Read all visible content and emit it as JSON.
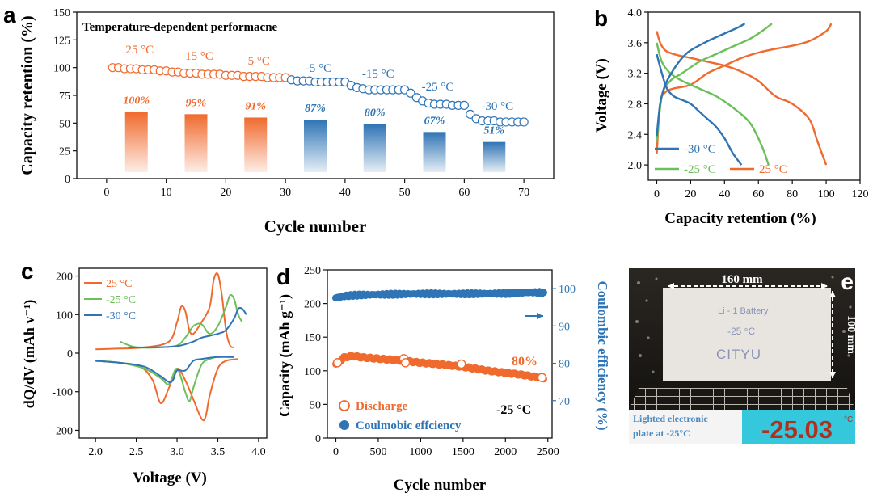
{
  "panels": {
    "a": {
      "letter": "a"
    },
    "b": {
      "letter": "b"
    },
    "c": {
      "letter": "c"
    },
    "d": {
      "letter": "d"
    },
    "e": {
      "letter": "e"
    }
  },
  "chart_data": [
    {
      "id": "a",
      "type": "scatter+bar",
      "title": "Temperature-dependent performacne",
      "xlabel": "Cycle number",
      "ylabel": "Capacity retention (%)",
      "xlim": [
        -5,
        75
      ],
      "ylim": [
        0,
        150
      ],
      "xticks": [
        0,
        10,
        20,
        30,
        40,
        50,
        60,
        70
      ],
      "yticks": [
        0,
        25,
        50,
        75,
        100,
        125,
        150
      ],
      "grid": false,
      "bars": [
        {
          "x": 5,
          "value": 60,
          "label": "100%",
          "temp": "25 °C",
          "color": "#f06a2e"
        },
        {
          "x": 15,
          "value": 58,
          "label": "95%",
          "temp": "15 °C",
          "color": "#f06a2e"
        },
        {
          "x": 25,
          "value": 55,
          "label": "91%",
          "temp": "5 °C",
          "color": "#f06a2e"
        },
        {
          "x": 35,
          "value": 53,
          "label": "87%",
          "temp": "-5 °C",
          "color": "#2f74b5"
        },
        {
          "x": 45,
          "value": 49,
          "label": "80%",
          "temp": "-15 °C",
          "color": "#2f74b5"
        },
        {
          "x": 55,
          "value": 42,
          "label": "67%",
          "temp": "-25 °C",
          "color": "#2f74b5"
        },
        {
          "x": 65,
          "value": 33,
          "label": "51%",
          "temp": "-30 °C",
          "color": "#2f74b5"
        }
      ],
      "series": [
        {
          "x_start": 1,
          "values": [
            100,
            100,
            99,
            99,
            99,
            98,
            98,
            98,
            97,
            97,
            96,
            96,
            95,
            95,
            95,
            94,
            94,
            94,
            94,
            93,
            93,
            93,
            92,
            92,
            92,
            92,
            91,
            91,
            91,
            91,
            89,
            88,
            88,
            88,
            87,
            87,
            87,
            87,
            87,
            87,
            84,
            82,
            81,
            80,
            80,
            80,
            80,
            80,
            80,
            80,
            77,
            73,
            70,
            68,
            67,
            67,
            67,
            66,
            66,
            66,
            58,
            54,
            52,
            52,
            52,
            51,
            51,
            51,
            51,
            51
          ]
        }
      ]
    },
    {
      "id": "b",
      "type": "line",
      "xlabel": "Capacity retention (%)",
      "ylabel": "Voltage (V)",
      "xlim": [
        -5,
        120
      ],
      "ylim": [
        1.8,
        4.0
      ],
      "xticks": [
        0,
        20,
        40,
        60,
        80,
        100,
        120
      ],
      "yticks": [
        "2.0",
        "2.4",
        "2.8",
        "3.2",
        "3.6",
        "4.0"
      ],
      "legend": [
        {
          "name": "-30 °C",
          "color": "#2f74b5"
        },
        {
          "name": "-25 °C",
          "color": "#6cbf5a"
        },
        {
          "name": "25 °C",
          "color": "#f06a2e"
        }
      ],
      "series": [
        {
          "name": "25 °C",
          "color": "#f06a2e",
          "branch": "charge",
          "x": [
            0,
            2,
            5,
            10,
            20,
            30,
            40,
            50,
            60,
            70,
            80,
            90,
            100,
            103
          ],
          "y": [
            2.15,
            2.8,
            2.95,
            3.0,
            3.05,
            3.2,
            3.3,
            3.4,
            3.47,
            3.52,
            3.56,
            3.62,
            3.75,
            3.85
          ]
        },
        {
          "name": "25 °C",
          "color": "#f06a2e",
          "branch": "discharge",
          "x": [
            0,
            2,
            5,
            10,
            20,
            30,
            40,
            50,
            60,
            70,
            80,
            90,
            95,
            100
          ],
          "y": [
            3.75,
            3.6,
            3.5,
            3.45,
            3.4,
            3.35,
            3.3,
            3.22,
            3.1,
            2.9,
            2.8,
            2.6,
            2.3,
            2.0
          ]
        },
        {
          "name": "-25 °C",
          "color": "#6cbf5a",
          "branch": "charge",
          "x": [
            0,
            3,
            8,
            15,
            25,
            35,
            45,
            55,
            62,
            68
          ],
          "y": [
            2.3,
            2.9,
            3.1,
            3.2,
            3.35,
            3.45,
            3.55,
            3.65,
            3.75,
            3.85
          ]
        },
        {
          "name": "-25 °C",
          "color": "#6cbf5a",
          "branch": "discharge",
          "x": [
            0,
            3,
            8,
            15,
            25,
            35,
            45,
            55,
            62,
            66
          ],
          "y": [
            3.6,
            3.35,
            3.2,
            3.1,
            3.0,
            2.9,
            2.75,
            2.55,
            2.25,
            2.0
          ]
        },
        {
          "name": "-30 °C",
          "color": "#2f74b5",
          "branch": "charge",
          "x": [
            0,
            2,
            5,
            10,
            15,
            20,
            30,
            40,
            48,
            52
          ],
          "y": [
            2.38,
            2.8,
            3.05,
            3.25,
            3.4,
            3.5,
            3.62,
            3.72,
            3.8,
            3.85
          ]
        },
        {
          "name": "-30 °C",
          "color": "#2f74b5",
          "branch": "discharge",
          "x": [
            0,
            3,
            6,
            10,
            15,
            20,
            25,
            30,
            35,
            40,
            45,
            50
          ],
          "y": [
            3.45,
            3.2,
            3.0,
            2.9,
            2.85,
            2.8,
            2.7,
            2.6,
            2.5,
            2.35,
            2.15,
            2.0
          ]
        }
      ]
    },
    {
      "id": "c",
      "type": "line",
      "xlabel": "Voltage (V)",
      "ylabel": "dQ/dV (mAh v⁻¹)",
      "xlim": [
        1.8,
        4.1
      ],
      "ylim": [
        -220,
        220
      ],
      "xticks": [
        "2.0",
        "2.5",
        "3.0",
        "3.5",
        "4.0"
      ],
      "yticks": [
        -200,
        -100,
        0,
        100,
        200
      ],
      "legend": [
        {
          "name": "25 °C",
          "color": "#f06a2e"
        },
        {
          "name": "-25 °C",
          "color": "#6cbf5a"
        },
        {
          "name": "-30 °C",
          "color": "#2f74b5"
        }
      ],
      "series": [
        {
          "name": "25 °C",
          "color": "#f06a2e",
          "x": [
            2.0,
            2.3,
            2.6,
            2.9,
            3.0,
            3.05,
            3.1,
            3.15,
            3.2,
            3.3,
            3.4,
            3.45,
            3.5,
            3.55,
            3.6,
            3.65,
            3.7
          ],
          "y": [
            10,
            12,
            15,
            30,
            80,
            120,
            110,
            60,
            50,
            80,
            120,
            190,
            205,
            150,
            60,
            20,
            15
          ]
        },
        {
          "name": "25 °C",
          "color": "#f06a2e",
          "x": [
            2.0,
            2.3,
            2.55,
            2.7,
            2.8,
            2.9,
            3.0,
            3.1,
            3.2,
            3.3,
            3.35,
            3.4,
            3.5,
            3.6,
            3.75
          ],
          "y": [
            -20,
            -25,
            -35,
            -70,
            -130,
            -90,
            -40,
            -70,
            -120,
            -170,
            -165,
            -110,
            -40,
            -20,
            -15
          ]
        },
        {
          "name": "-25 °C",
          "color": "#6cbf5a",
          "x": [
            2.3,
            2.5,
            2.8,
            3.0,
            3.1,
            3.2,
            3.3,
            3.4,
            3.5,
            3.6,
            3.65,
            3.7,
            3.75,
            3.8
          ],
          "y": [
            30,
            15,
            15,
            20,
            40,
            70,
            75,
            50,
            70,
            120,
            150,
            140,
            100,
            80
          ]
        },
        {
          "name": "-25 °C",
          "color": "#6cbf5a",
          "x": [
            2.0,
            2.3,
            2.6,
            2.8,
            2.9,
            3.0,
            3.1,
            3.15,
            3.2,
            3.3,
            3.4,
            3.5,
            3.7
          ],
          "y": [
            -20,
            -25,
            -40,
            -65,
            -80,
            -40,
            -100,
            -125,
            -90,
            -30,
            -15,
            -10,
            -10
          ]
        },
        {
          "name": "-30 °C",
          "color": "#2f74b5",
          "x": [
            2.4,
            2.7,
            3.0,
            3.2,
            3.3,
            3.5,
            3.6,
            3.7,
            3.75,
            3.8,
            3.85
          ],
          "y": [
            15,
            15,
            18,
            30,
            40,
            50,
            60,
            90,
            115,
            115,
            100
          ]
        },
        {
          "name": "-30 °C",
          "color": "#2f74b5",
          "x": [
            2.0,
            2.3,
            2.6,
            2.8,
            2.9,
            2.95,
            3.0,
            3.1,
            3.2,
            3.3,
            3.5,
            3.7
          ],
          "y": [
            -20,
            -25,
            -35,
            -60,
            -75,
            -70,
            -45,
            -45,
            -20,
            -15,
            -10,
            -10
          ]
        }
      ]
    },
    {
      "id": "d",
      "type": "scatter",
      "xlabel": "Cycle number",
      "ylabel": "Capacity (mAh g⁻¹)",
      "ylabel_right": "Coulombic efficiency (%)",
      "xlim": [
        -100,
        2550
      ],
      "ylim": [
        0,
        250
      ],
      "ylim_right": [
        60,
        105
      ],
      "xticks": [
        0,
        500,
        1000,
        1500,
        2000,
        2500
      ],
      "yticks": [
        0,
        50,
        100,
        150,
        200,
        250
      ],
      "yticks_right": [
        70,
        80,
        90,
        100
      ],
      "annotation": "80%",
      "condition": "-25 °C",
      "legend": [
        {
          "name": "Discharge",
          "color": "#f06a2e",
          "marker": "open-circle"
        },
        {
          "name": "Coulmobic effciency",
          "color": "#2f74b5",
          "marker": "filled-circle"
        }
      ],
      "series": [
        {
          "name": "Discharge",
          "axis": "left",
          "x": [
            0,
            100,
            200,
            300,
            500,
            700,
            800,
            1000,
            1200,
            1500,
            1800,
            2000,
            2200,
            2400,
            2450
          ],
          "y": [
            110,
            120,
            122,
            120,
            118,
            116,
            115,
            112,
            110,
            106,
            100,
            97,
            94,
            90,
            89
          ]
        },
        {
          "name": "Coulmobic effciency",
          "axis": "right",
          "x": [
            0,
            100,
            200,
            300,
            500,
            700,
            1000,
            1500,
            2000,
            2300,
            2400,
            2450
          ],
          "y": [
            97.5,
            98,
            98.2,
            98.3,
            98.4,
            98.5,
            98.6,
            98.6,
            98.7,
            99,
            99,
            98.7
          ]
        }
      ]
    }
  ],
  "photo": {
    "width_label": "160 mm",
    "height_label": "100 mm",
    "sticker_lines": [
      "Li - 1  Battery",
      "-25 °C",
      "CITYU"
    ],
    "caption": "Lighted electronic plate at -25°C",
    "display": "-25.03",
    "display_unit": "°C"
  }
}
